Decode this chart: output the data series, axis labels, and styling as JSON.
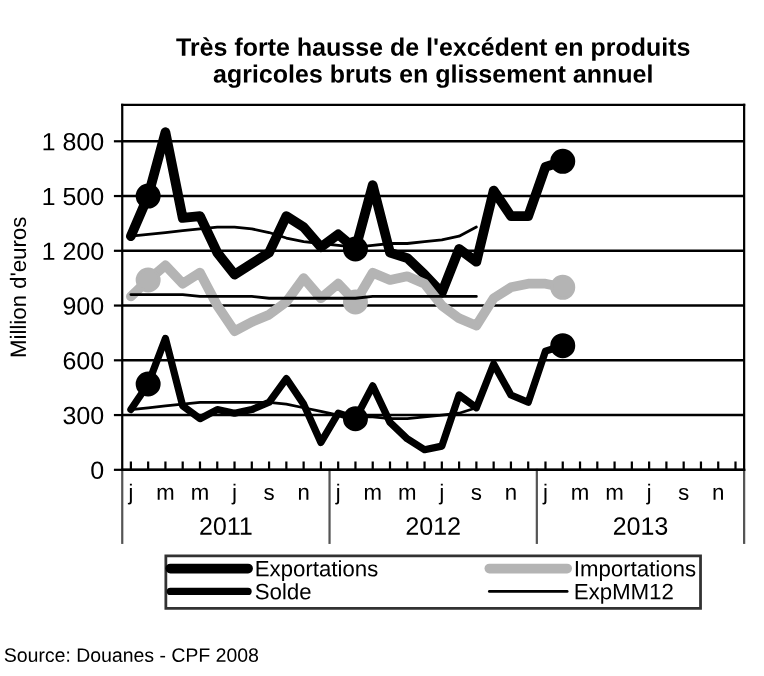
{
  "chart_data": {
    "type": "line",
    "title": "Très forte hausse de l'excédent en produits\nagricoles bruts en glissement annuel",
    "ylabel": "Million d'euros",
    "categories": [
      "j",
      null,
      "m",
      null,
      "m",
      null,
      "j",
      null,
      "s",
      null,
      "n",
      null,
      "j",
      null,
      "m",
      null,
      "m",
      null,
      "j",
      null,
      "s",
      null,
      "n",
      null,
      "j",
      null,
      "m",
      null,
      "m",
      null,
      "j",
      null,
      "s",
      null,
      "n",
      null
    ],
    "series": [
      {
        "name": "Exportations",
        "color": "#000000",
        "values": [
          1280,
          1500,
          1850,
          1380,
          1390,
          1190,
          1070,
          1130,
          1190,
          1390,
          1330,
          1220,
          1290,
          1210,
          1560,
          1190,
          1160,
          1070,
          970,
          1210,
          1140,
          1530,
          1390,
          1390,
          1660,
          1690,
          null,
          null,
          null,
          null,
          null,
          null,
          null,
          null,
          null,
          null
        ]
      },
      {
        "name": "Importations",
        "color": "#b4b4b4",
        "values": [
          950,
          1040,
          1120,
          1020,
          1080,
          900,
          760,
          810,
          850,
          920,
          1050,
          940,
          1020,
          920,
          1080,
          1040,
          1060,
          1020,
          900,
          830,
          790,
          940,
          1000,
          1020,
          1020,
          1000,
          null,
          null,
          null,
          null,
          null,
          null,
          null,
          null,
          null,
          null
        ]
      },
      {
        "name": "Solde",
        "color": "#000000",
        "values": [
          330,
          470,
          720,
          350,
          280,
          330,
          310,
          330,
          370,
          500,
          360,
          150,
          310,
          280,
          460,
          260,
          170,
          110,
          130,
          410,
          340,
          580,
          410,
          370,
          650,
          680,
          null,
          null,
          null,
          null,
          null,
          null,
          null,
          null,
          null,
          null
        ]
      },
      {
        "name": "ExpMM12",
        "color": "#000000",
        "values": [
          1280,
          1290,
          1300,
          1310,
          1320,
          1330,
          1330,
          1320,
          1300,
          1270,
          1250,
          1240,
          1230,
          1220,
          1230,
          1240,
          1240,
          1250,
          1260,
          1280,
          1330,
          null,
          null,
          null,
          null,
          null,
          null,
          null,
          null,
          null,
          null,
          null,
          null,
          null,
          null,
          null
        ]
      },
      {
        "color": "#000000",
        "values": [
          960,
          960,
          960,
          960,
          950,
          950,
          950,
          950,
          940,
          940,
          940,
          940,
          940,
          940,
          950,
          950,
          950,
          950,
          950,
          950,
          950,
          null,
          null,
          null,
          null,
          null,
          null,
          null,
          null,
          null,
          null,
          null,
          null,
          null,
          null,
          null
        ]
      },
      {
        "color": "#000000",
        "values": [
          330,
          340,
          350,
          360,
          370,
          370,
          370,
          370,
          370,
          360,
          340,
          320,
          300,
          290,
          290,
          280,
          280,
          290,
          300,
          310,
          340,
          null,
          null,
          null,
          null,
          null,
          null,
          null,
          null,
          null,
          null,
          null,
          null,
          null,
          null,
          null
        ]
      },
      {
        "type": "scatter",
        "color": "#000000",
        "marker": "circle",
        "values": [
          null,
          1500,
          null,
          null,
          null,
          null,
          null,
          null,
          null,
          null,
          null,
          null,
          null,
          1210,
          null,
          null,
          null,
          null,
          null,
          null,
          null,
          null,
          null,
          null,
          null,
          1690,
          null,
          null,
          null,
          null,
          null,
          null,
          null,
          null,
          null,
          null
        ]
      },
      {
        "type": "scatter",
        "color": "#b4b4b4",
        "marker": "circle",
        "values": [
          null,
          1040,
          null,
          null,
          null,
          null,
          null,
          null,
          null,
          null,
          null,
          null,
          null,
          920,
          null,
          null,
          null,
          null,
          null,
          null,
          null,
          null,
          null,
          null,
          null,
          1000,
          null,
          null,
          null,
          null,
          null,
          null,
          null,
          null,
          null,
          null
        ]
      },
      {
        "type": "scatter",
        "color": "#000000",
        "marker": "circle",
        "values": [
          null,
          470,
          null,
          null,
          null,
          null,
          null,
          null,
          null,
          null,
          null,
          null,
          null,
          280,
          null,
          null,
          null,
          null,
          null,
          null,
          null,
          null,
          null,
          null,
          null,
          680,
          null,
          null,
          null,
          null,
          null,
          null,
          null,
          null,
          null,
          null
        ]
      }
    ],
    "ylim": [
      0,
      2000
    ],
    "yticks": [
      0,
      300,
      600,
      900,
      {
        "value": 1200,
        "label": "1 200"
      },
      {
        "value": 1500,
        "label": "1 500"
      },
      {
        "value": 1800,
        "label": "1 800"
      }
    ],
    "grid": "y",
    "legend": "bottom",
    "annotations": [
      "2011",
      "2012",
      "2013",
      "Source: Douanes - CPF 2008"
    ]
  }
}
